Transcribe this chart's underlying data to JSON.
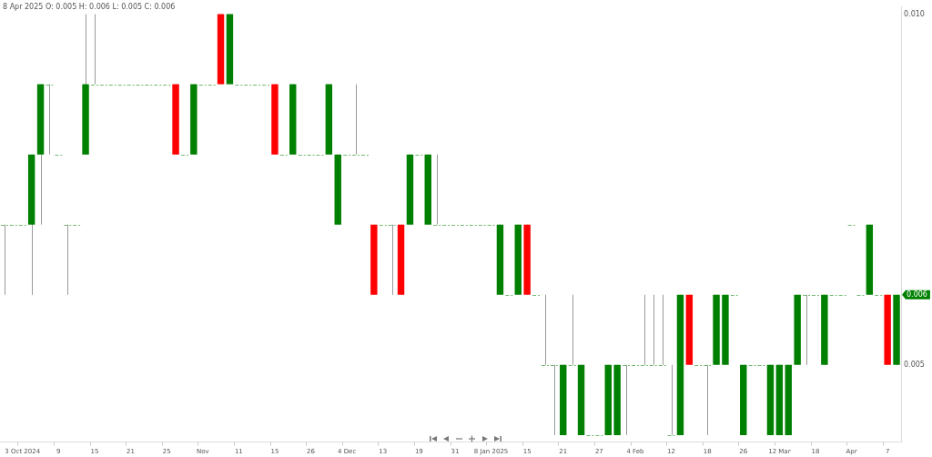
{
  "chart_data": {
    "type": "candlestick",
    "title": "8 Apr 2025 O: 0.005 H: 0.006 L: 0.005 C: 0.006",
    "categories": [
      null,
      null,
      "3 Oct 2024",
      null,
      null,
      null,
      "9",
      null,
      null,
      null,
      "15",
      null,
      null,
      null,
      "21",
      null,
      null,
      null,
      "25",
      null,
      null,
      null,
      "Nov",
      null,
      null,
      null,
      "11",
      null,
      null,
      null,
      "15",
      null,
      null,
      null,
      "26",
      null,
      null,
      null,
      "4 Dec",
      null,
      null,
      null,
      "13",
      null,
      null,
      null,
      "19",
      null,
      null,
      null,
      "31",
      null,
      null,
      null,
      "8 Jan 2025",
      null,
      null,
      null,
      "15",
      null,
      null,
      null,
      "21",
      null,
      null,
      null,
      "27",
      null,
      null,
      null,
      "4 Feb",
      null,
      null,
      null,
      "12",
      null,
      null,
      null,
      "18",
      null,
      null,
      null,
      "26",
      null,
      null,
      null,
      "12 Mar",
      null,
      null,
      null,
      "18",
      null,
      null,
      null,
      "Apr",
      null,
      null,
      null,
      "7",
      null
    ],
    "ohlc": [
      [
        0.007,
        0.007,
        0.006,
        0.007
      ],
      [
        0.007,
        0.007,
        0.007,
        0.007
      ],
      [
        0.007,
        0.007,
        0.007,
        0.007
      ],
      [
        0.007,
        0.008,
        0.006,
        0.008
      ],
      [
        0.008,
        0.009,
        0.007,
        0.009
      ],
      [
        0.009,
        0.009,
        0.008,
        0.009
      ],
      [
        0.008,
        0.008,
        0.008,
        0.008
      ],
      [
        0.007,
        0.007,
        0.006,
        0.007
      ],
      [
        0.007,
        0.007,
        0.007,
        0.007
      ],
      [
        0.008,
        0.01,
        0.008,
        0.009
      ],
      [
        0.009,
        0.01,
        0.009,
        0.009
      ],
      [
        0.009,
        0.009,
        0.009,
        0.009
      ],
      [
        0.009,
        0.009,
        0.009,
        0.009
      ],
      [
        0.009,
        0.009,
        0.009,
        0.009
      ],
      [
        0.009,
        0.009,
        0.009,
        0.009
      ],
      [
        0.009,
        0.009,
        0.009,
        0.009
      ],
      [
        0.009,
        0.009,
        0.009,
        0.009
      ],
      [
        0.009,
        0.009,
        0.009,
        0.009
      ],
      [
        0.009,
        0.009,
        0.009,
        0.009
      ],
      [
        0.009,
        0.009,
        0.008,
        0.008
      ],
      [
        0.008,
        0.008,
        0.008,
        0.008
      ],
      [
        0.008,
        0.009,
        0.008,
        0.009
      ],
      [
        0.009,
        0.009,
        0.009,
        0.009
      ],
      [
        0.009,
        0.009,
        0.009,
        0.009
      ],
      [
        0.01,
        0.01,
        0.009,
        0.009
      ],
      [
        0.009,
        0.01,
        0.009,
        0.01
      ],
      [
        0.009,
        0.009,
        0.009,
        0.009
      ],
      [
        0.009,
        0.009,
        0.009,
        0.009
      ],
      [
        0.009,
        0.009,
        0.009,
        0.009
      ],
      [
        0.009,
        0.009,
        0.009,
        0.009
      ],
      [
        0.009,
        0.009,
        0.008,
        0.008
      ],
      [
        0.008,
        0.008,
        0.008,
        0.008
      ],
      [
        0.008,
        0.009,
        0.008,
        0.009
      ],
      [
        0.008,
        0.008,
        0.008,
        0.008
      ],
      [
        0.008,
        0.008,
        0.008,
        0.008
      ],
      [
        0.008,
        0.008,
        0.008,
        0.008
      ],
      [
        0.008,
        0.009,
        0.008,
        0.009
      ],
      [
        0.007,
        0.008,
        0.007,
        0.008
      ],
      [
        0.008,
        0.008,
        0.008,
        0.008
      ],
      [
        0.008,
        0.009,
        0.008,
        0.008
      ],
      [
        0.008,
        0.008,
        0.008,
        0.008
      ],
      [
        0.007,
        0.007,
        0.006,
        0.006
      ],
      [
        0.007,
        0.007,
        0.007,
        0.007
      ],
      [
        0.007,
        0.007,
        0.006,
        0.007
      ],
      [
        0.007,
        0.007,
        0.006,
        0.006
      ],
      [
        0.007,
        0.008,
        0.007,
        0.008
      ],
      [
        0.008,
        0.008,
        0.008,
        0.008
      ],
      [
        0.007,
        0.008,
        0.007,
        0.008
      ],
      [
        0.007,
        0.008,
        0.007,
        0.007
      ],
      [
        0.007,
        0.007,
        0.007,
        0.007
      ],
      [
        0.007,
        0.007,
        0.007,
        0.007
      ],
      [
        0.007,
        0.007,
        0.007,
        0.007
      ],
      [
        0.007,
        0.007,
        0.007,
        0.007
      ],
      [
        0.007,
        0.007,
        0.007,
        0.007
      ],
      [
        0.007,
        0.007,
        0.007,
        0.007
      ],
      [
        0.006,
        0.007,
        0.006,
        0.007
      ],
      [
        0.006,
        0.006,
        0.006,
        0.006
      ],
      [
        0.006,
        0.007,
        0.006,
        0.007
      ],
      [
        0.007,
        0.007,
        0.006,
        0.006
      ],
      [
        0.006,
        0.006,
        0.006,
        0.006
      ],
      [
        0.005,
        0.006,
        0.005,
        0.005
      ],
      [
        0.005,
        0.005,
        0.004,
        0.005
      ],
      [
        0.004,
        0.005,
        0.004,
        0.005
      ],
      [
        0.005,
        0.006,
        0.005,
        0.005
      ],
      [
        0.004,
        0.005,
        0.004,
        0.005
      ],
      [
        0.004,
        0.004,
        0.004,
        0.004
      ],
      [
        0.004,
        0.004,
        0.004,
        0.004
      ],
      [
        0.004,
        0.005,
        0.004,
        0.005
      ],
      [
        0.004,
        0.005,
        0.004,
        0.005
      ],
      [
        0.005,
        0.005,
        0.004,
        0.005
      ],
      [
        0.005,
        0.005,
        0.005,
        0.005
      ],
      [
        0.005,
        0.006,
        0.005,
        0.005
      ],
      [
        0.005,
        0.006,
        0.005,
        0.005
      ],
      [
        0.005,
        0.006,
        0.005,
        0.005
      ],
      [
        0.004,
        0.005,
        0.004,
        0.004
      ],
      [
        0.004,
        0.006,
        0.004,
        0.006
      ],
      [
        0.006,
        0.006,
        0.005,
        0.005
      ],
      [
        0.005,
        0.005,
        0.005,
        0.005
      ],
      [
        0.005,
        0.005,
        0.004,
        0.005
      ],
      [
        0.005,
        0.006,
        0.005,
        0.006
      ],
      [
        0.005,
        0.006,
        0.005,
        0.006
      ],
      [
        0.006,
        0.006,
        0.006,
        0.006
      ],
      [
        0.004,
        0.005,
        0.004,
        0.005
      ],
      [
        0.005,
        0.005,
        0.005,
        0.005
      ],
      [
        0.005,
        0.005,
        0.005,
        0.005
      ],
      [
        0.004,
        0.005,
        0.004,
        0.005
      ],
      [
        0.004,
        0.005,
        0.004,
        0.005
      ],
      [
        0.004,
        0.005,
        0.004,
        0.005
      ],
      [
        0.005,
        0.006,
        0.005,
        0.006
      ],
      [
        0.006,
        0.006,
        0.005,
        0.006
      ],
      [
        0.006,
        0.006,
        0.006,
        0.006
      ],
      [
        0.005,
        0.006,
        0.005,
        0.006
      ],
      [
        0.006,
        0.006,
        0.006,
        0.006
      ],
      [
        0.006,
        0.006,
        0.006,
        0.006
      ],
      [
        0.007,
        0.007,
        0.007,
        0.007
      ],
      [
        0.006,
        0.006,
        0.006,
        0.006
      ],
      [
        0.006,
        0.007,
        0.006,
        0.007
      ],
      [
        0.006,
        0.006,
        0.006,
        0.006
      ],
      [
        0.006,
        0.006,
        0.005,
        0.005
      ],
      [
        0.005,
        0.006,
        0.005,
        0.006
      ]
    ],
    "colors": [
      "#008000",
      "#008000",
      "#008000",
      "#008000",
      "#008000",
      "#008000",
      "#008000",
      "#008000",
      "#008000",
      "#008000",
      "#008000",
      "#008000",
      "#008000",
      "#008000",
      "#008000",
      "#008000",
      "#008000",
      "#008000",
      "#008000",
      "#ff0000",
      "#008000",
      "#008000",
      "#008000",
      "#008000",
      "#ff0000",
      "#008000",
      "#008000",
      "#008000",
      "#008000",
      "#008000",
      "#ff0000",
      "#008000",
      "#008000",
      "#008000",
      "#008000",
      "#008000",
      "#008000",
      "#008000",
      "#008000",
      "#008000",
      "#008000",
      "#ff0000",
      "#008000",
      "#008000",
      "#ff0000",
      "#008000",
      "#008000",
      "#008000",
      "#008000",
      "#008000",
      "#008000",
      "#008000",
      "#008000",
      "#008000",
      "#008000",
      "#008000",
      "#008000",
      "#008000",
      "#ff0000",
      "#008000",
      "#008000",
      "#008000",
      "#008000",
      "#008000",
      "#008000",
      "#008000",
      "#008000",
      "#008000",
      "#008000",
      "#008000",
      "#008000",
      "#008000",
      "#008000",
      "#008000",
      "#008000",
      "#008000",
      "#ff0000",
      "#008000",
      "#008000",
      "#008000",
      "#008000",
      "#008000",
      "#008000",
      "#008000",
      "#008000",
      "#008000",
      "#008000",
      "#008000",
      "#008000",
      "#008000",
      "#008000",
      "#008000",
      "#008000",
      "#008000",
      "#008000",
      "#008000",
      "#008000",
      "#008000",
      "#ff0000",
      "#008000"
    ],
    "ylim": [
      0.0039,
      0.0101
    ],
    "yticks": [
      {
        "value": 0.005,
        "label": "0.005"
      },
      {
        "value": 0.01,
        "label": "0.010"
      }
    ],
    "annotations": [
      {
        "text": "0.006",
        "y": 0.006
      }
    ],
    "grid": false,
    "legend": false
  }
}
